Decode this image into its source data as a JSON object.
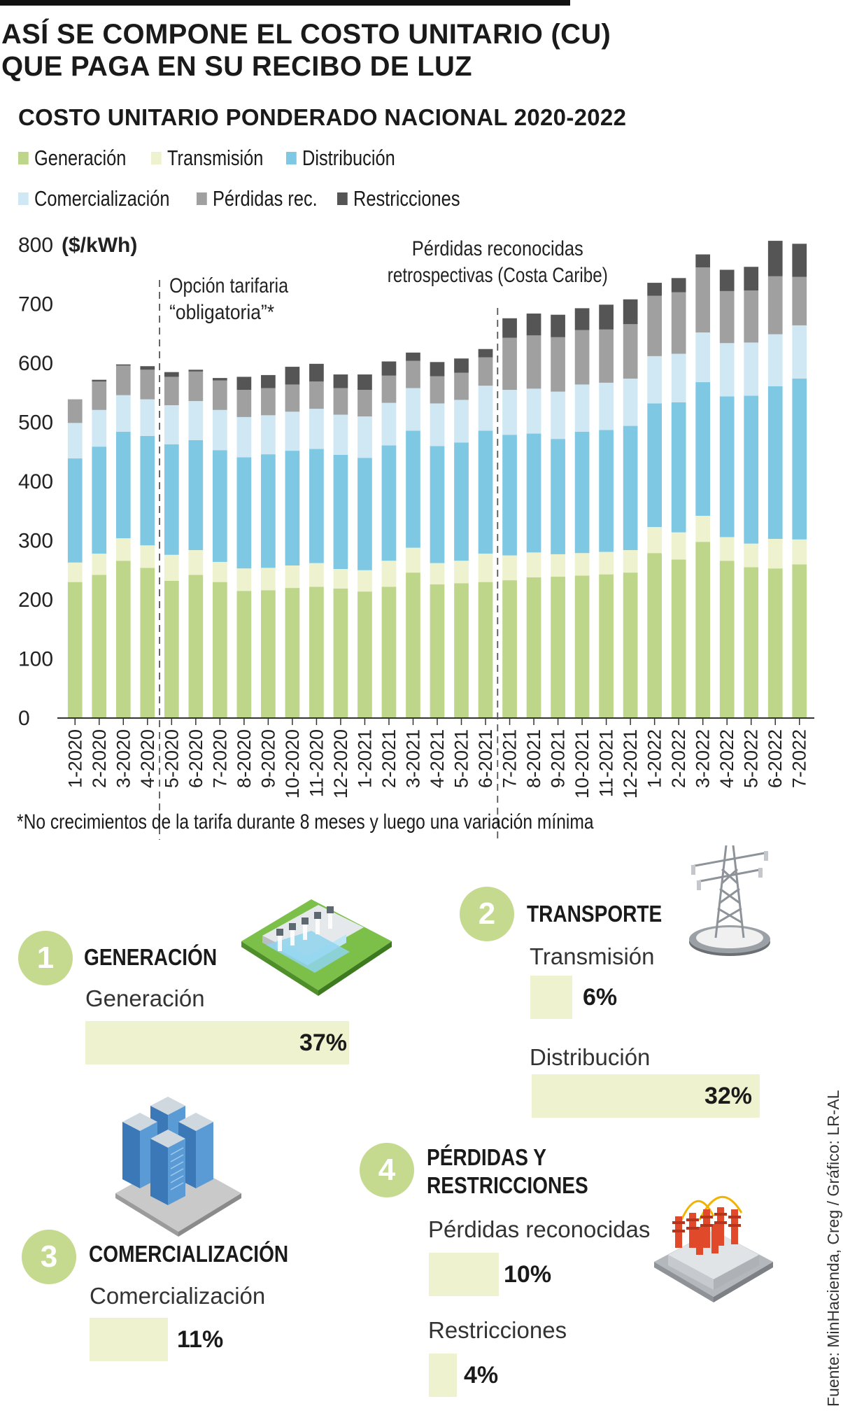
{
  "title_line1": "ASÍ SE COMPONE EL COSTO UNITARIO (CU)",
  "title_line2": "QUE PAGA EN SU RECIBO DE LUZ",
  "chart_data": {
    "type": "bar",
    "stacked": true,
    "title": "COSTO UNITARIO PONDERADO NACIONAL 2020-2022",
    "ylabel": "($/kWh)",
    "ylim": [
      0,
      800
    ],
    "yticks": [
      0,
      100,
      200,
      300,
      400,
      500,
      600,
      700,
      800
    ],
    "categories": [
      "1-2020",
      "2-2020",
      "3-2020",
      "4-2020",
      "5-2020",
      "6-2020",
      "7-2020",
      "8-2020",
      "9-2020",
      "10-2020",
      "11-2020",
      "12-2020",
      "1-2021",
      "2-2021",
      "3-2021",
      "4-2021",
      "5-2021",
      "6-2021",
      "7-2021",
      "8-2021",
      "9-2021",
      "10-2021",
      "11-2021",
      "12-2021",
      "1-2022",
      "2-2022",
      "3-2022",
      "4-2022",
      "5-2022",
      "6-2022",
      "7-2022"
    ],
    "series": [
      {
        "name": "Generación",
        "color": "#bdd68a",
        "values": [
          230,
          242,
          266,
          254,
          232,
          242,
          230,
          215,
          216,
          220,
          222,
          219,
          214,
          222,
          246,
          226,
          228,
          230,
          233,
          238,
          239,
          241,
          243,
          246,
          279,
          268,
          298,
          266,
          255,
          253,
          260
        ]
      },
      {
        "name": "Transmisión",
        "color": "#eef2cf",
        "values": [
          33,
          36,
          38,
          38,
          44,
          42,
          34,
          38,
          38,
          38,
          40,
          33,
          36,
          44,
          42,
          36,
          38,
          48,
          42,
          42,
          38,
          38,
          38,
          38,
          44,
          46,
          44,
          40,
          40,
          50,
          42
        ]
      },
      {
        "name": "Distribución",
        "color": "#7ec8e3",
        "values": [
          176,
          181,
          180,
          185,
          187,
          186,
          189,
          188,
          192,
          194,
          193,
          193,
          190,
          195,
          198,
          198,
          200,
          208,
          204,
          201,
          195,
          205,
          206,
          210,
          209,
          220,
          226,
          238,
          250,
          258,
          272
        ]
      },
      {
        "name": "Comercialización",
        "color": "#cfe8f3",
        "values": [
          60,
          62,
          62,
          62,
          66,
          66,
          68,
          68,
          66,
          66,
          68,
          68,
          70,
          72,
          72,
          72,
          72,
          76,
          76,
          76,
          80,
          80,
          80,
          80,
          80,
          82,
          84,
          90,
          90,
          88,
          90
        ]
      },
      {
        "name": "Pérdidas rec.",
        "color": "#a0a0a0",
        "values": [
          40,
          48,
          50,
          50,
          48,
          50,
          50,
          46,
          46,
          46,
          46,
          45,
          45,
          46,
          46,
          46,
          46,
          48,
          88,
          90,
          92,
          92,
          90,
          92,
          102,
          104,
          110,
          88,
          88,
          98,
          82
        ]
      },
      {
        "name": "Restricciones",
        "color": "#555555",
        "values": [
          0,
          3,
          2,
          6,
          8,
          3,
          4,
          22,
          22,
          30,
          30,
          23,
          26,
          24,
          14,
          24,
          24,
          14,
          33,
          37,
          38,
          37,
          42,
          42,
          22,
          24,
          22,
          36,
          40,
          60,
          56
        ]
      }
    ],
    "annotations": [
      {
        "text_line1": "Opción tarifaria",
        "text_line2": "“obligatoria”*",
        "after_category": "4-2020"
      },
      {
        "text_line1": "Pérdidas reconocidas",
        "text_line2": "retrospectivas (Costa Caribe)",
        "after_category": "6-2021"
      }
    ],
    "grid": false,
    "legend": "top"
  },
  "footnote": "*No crecimientos de la tarifa durante 8 meses y luego una variación mínima",
  "sections": {
    "s1": {
      "number": "1",
      "title": "GENERACIÓN",
      "items": [
        {
          "label": "Generación",
          "value": "37%",
          "percent": 37
        }
      ]
    },
    "s2": {
      "number": "2",
      "title": "TRANSPORTE",
      "items": [
        {
          "label": "Transmisión",
          "value": "6%",
          "percent": 6
        },
        {
          "label": "Distribución",
          "value": "32%",
          "percent": 32
        }
      ]
    },
    "s3": {
      "number": "3",
      "title": "COMERCIALIZACIÓN",
      "items": [
        {
          "label": "Comercialización",
          "value": "11%",
          "percent": 11
        }
      ]
    },
    "s4": {
      "number": "4",
      "title_line1": "PÉRDIDAS Y",
      "title_line2": "RESTRICCIONES",
      "items": [
        {
          "label": "Pérdidas reconocidas",
          "value": "10%",
          "percent": 10
        },
        {
          "label": "Restricciones",
          "value": "4%",
          "percent": 4
        }
      ]
    }
  },
  "icons": [
    "hydro-dam-icon",
    "power-tower-icon",
    "server-racks-icon",
    "substation-icon"
  ],
  "source": "Fuente: MinHacienda, Creg / Gráfico: LR-AL"
}
